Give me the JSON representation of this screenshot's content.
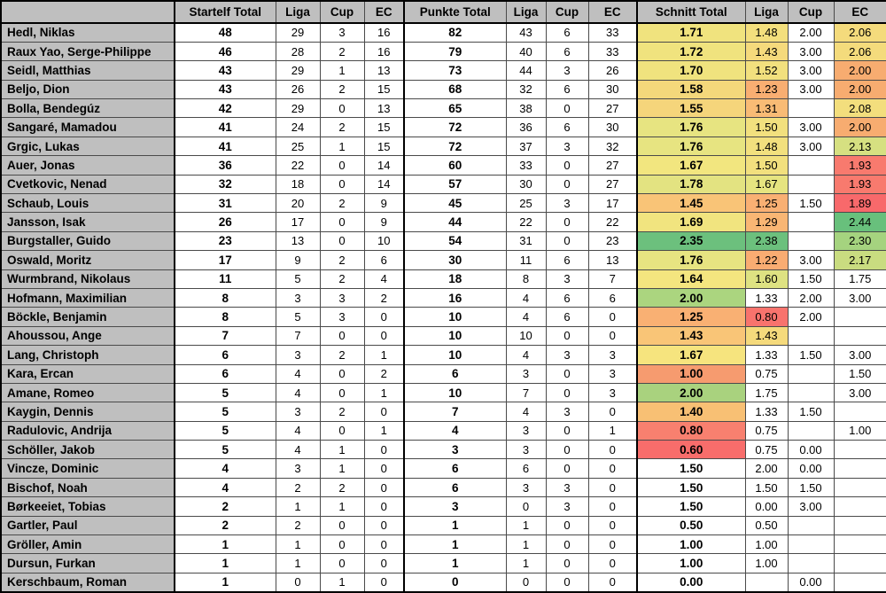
{
  "table": {
    "colors": {
      "header_fill": "#BFBFBF",
      "name_fill": "#BFBFBF",
      "scale_red": "#F8696B",
      "scale_yellow": "#FFEB84",
      "scale_green": "#63BE7B"
    },
    "columns": [
      {
        "key": "player",
        "label": ""
      },
      {
        "key": "startelf-total",
        "label": "Startelf Total"
      },
      {
        "key": "startelf-liga",
        "label": "Liga"
      },
      {
        "key": "startelf-cup",
        "label": "Cup"
      },
      {
        "key": "startelf-ec",
        "label": "EC"
      },
      {
        "key": "punkte-total",
        "label": "Punkte Total"
      },
      {
        "key": "punkte-liga",
        "label": "Liga"
      },
      {
        "key": "punkte-cup",
        "label": "Cup"
      },
      {
        "key": "punkte-ec",
        "label": "EC"
      },
      {
        "key": "schnitt-total",
        "label": "Schnitt Total"
      },
      {
        "key": "schnitt-liga",
        "label": "Liga"
      },
      {
        "key": "schnitt-cup",
        "label": "Cup"
      },
      {
        "key": "schnitt-ec",
        "label": "EC"
      }
    ],
    "rows": [
      {
        "name": "Hedl, Niklas",
        "values": [
          "48",
          "29",
          "3",
          "16",
          "82",
          "43",
          "6",
          "33",
          "1.71",
          "1.48",
          "2.00",
          "2.06"
        ],
        "fills": [
          "#F0E37E",
          "#F3DF7D",
          null,
          "#F4DB7C"
        ]
      },
      {
        "name": "Raux Yao, Serge-Philippe",
        "values": [
          "46",
          "28",
          "2",
          "16",
          "79",
          "40",
          "6",
          "33",
          "1.72",
          "1.43",
          "3.00",
          "2.06"
        ],
        "fills": [
          "#F0E37E",
          "#F5DA7C",
          null,
          "#F4DB7C"
        ]
      },
      {
        "name": "Seidl, Matthias",
        "values": [
          "43",
          "29",
          "1",
          "13",
          "73",
          "44",
          "3",
          "26",
          "1.70",
          "1.52",
          "3.00",
          "2.00"
        ],
        "fills": [
          "#F0E37E",
          "#F2E07E",
          null,
          "#F7AC70"
        ]
      },
      {
        "name": "Beljo, Dion",
        "values": [
          "43",
          "26",
          "2",
          "15",
          "68",
          "32",
          "6",
          "30",
          "1.58",
          "1.23",
          "3.00",
          "2.00"
        ],
        "fills": [
          "#F4D87B",
          "#F9AE72",
          null,
          "#F7AC70"
        ]
      },
      {
        "name": "Bolla, Bendegúz",
        "values": [
          "42",
          "29",
          "0",
          "13",
          "65",
          "38",
          "0",
          "27",
          "1.55",
          "1.31",
          "",
          "2.08"
        ],
        "fills": [
          "#F5D57B",
          "#F9BB75",
          null,
          "#F3DE7D"
        ]
      },
      {
        "name": "Sangaré, Mamadou",
        "values": [
          "41",
          "24",
          "2",
          "15",
          "72",
          "36",
          "6",
          "30",
          "1.76",
          "1.50",
          "3.00",
          "2.00"
        ],
        "fills": [
          "#E7E481",
          "#F2E07E",
          null,
          "#F7AC70"
        ]
      },
      {
        "name": "Grgic, Lukas",
        "values": [
          "41",
          "25",
          "1",
          "15",
          "72",
          "37",
          "3",
          "32",
          "1.76",
          "1.48",
          "3.00",
          "2.13"
        ],
        "fills": [
          "#E7E481",
          "#F2E07E",
          null,
          "#D6E081"
        ]
      },
      {
        "name": "Auer, Jonas",
        "values": [
          "36",
          "22",
          "0",
          "14",
          "60",
          "33",
          "0",
          "27",
          "1.67",
          "1.50",
          "",
          "1.93"
        ],
        "fills": [
          "#F2E67F",
          "#F2E07E",
          null,
          "#F87A6E"
        ]
      },
      {
        "name": "Cvetkovic, Nenad",
        "values": [
          "32",
          "18",
          "0",
          "14",
          "57",
          "30",
          "0",
          "27",
          "1.78",
          "1.67",
          "",
          "1.93"
        ],
        "fills": [
          "#E3E381",
          "#E6E480",
          null,
          "#F87A6E"
        ]
      },
      {
        "name": "Schaub, Louis",
        "values": [
          "31",
          "20",
          "2",
          "9",
          "45",
          "25",
          "3",
          "17",
          "1.45",
          "1.25",
          "1.50",
          "1.89"
        ],
        "fills": [
          "#F9C477",
          "#F9B073",
          null,
          "#F8696B"
        ]
      },
      {
        "name": "Jansson, Isak",
        "values": [
          "26",
          "17",
          "0",
          "9",
          "44",
          "22",
          "0",
          "22",
          "1.69",
          "1.29",
          "",
          "2.44"
        ],
        "fills": [
          "#F1E47F",
          "#F9B674",
          null,
          "#68C07C"
        ]
      },
      {
        "name": "Burgstaller, Guido",
        "values": [
          "23",
          "13",
          "0",
          "10",
          "54",
          "31",
          "0",
          "23",
          "2.35",
          "2.38",
          "",
          "2.30"
        ],
        "fills": [
          "#6CC07D",
          "#6CC07D",
          null,
          "#A5D37F"
        ]
      },
      {
        "name": "Oswald, Moritz",
        "values": [
          "17",
          "9",
          "2",
          "6",
          "30",
          "11",
          "6",
          "13",
          "1.76",
          "1.22",
          "3.00",
          "2.17"
        ],
        "fills": [
          "#E7E481",
          "#F9AC72",
          null,
          "#C9DC80"
        ]
      },
      {
        "name": "Wurmbrand, Nikolaus",
        "values": [
          "11",
          "5",
          "2",
          "4",
          "18",
          "8",
          "3",
          "7",
          "1.64",
          "1.60",
          "1.50",
          "1.75"
        ],
        "fills": [
          "#F4E57F",
          "#DEE282",
          null,
          null
        ]
      },
      {
        "name": "Hofmann, Maximilian",
        "values": [
          "8",
          "3",
          "3",
          "2",
          "16",
          "4",
          "6",
          "6",
          "2.00",
          "1.33",
          "2.00",
          "3.00"
        ],
        "fills": [
          "#ABD57F",
          null,
          null,
          null
        ]
      },
      {
        "name": "Böckle, Benjamin",
        "values": [
          "8",
          "5",
          "3",
          "0",
          "10",
          "4",
          "6",
          "0",
          "1.25",
          "0.80",
          "2.00",
          ""
        ],
        "fills": [
          "#F9B073",
          "#F8736D",
          null,
          null
        ]
      },
      {
        "name": "Ahoussou, Ange",
        "values": [
          "7",
          "7",
          "0",
          "0",
          "10",
          "10",
          "0",
          "0",
          "1.43",
          "1.43",
          "",
          ""
        ],
        "fills": [
          "#F9C577",
          "#F5DA7C",
          null,
          null
        ]
      },
      {
        "name": "Lang, Christoph",
        "values": [
          "6",
          "3",
          "2",
          "1",
          "10",
          "4",
          "3",
          "3",
          "1.67",
          "1.33",
          "1.50",
          "3.00"
        ],
        "fills": [
          "#F6E47E",
          null,
          null,
          null
        ]
      },
      {
        "name": "Kara, Ercan",
        "values": [
          "6",
          "4",
          "0",
          "2",
          "6",
          "3",
          "0",
          "3",
          "1.00",
          "0.75",
          "",
          "1.50"
        ],
        "fills": [
          "#F69B6F",
          null,
          null,
          null
        ]
      },
      {
        "name": "Amane, Romeo",
        "values": [
          "5",
          "4",
          "0",
          "1",
          "10",
          "7",
          "0",
          "3",
          "2.00",
          "1.75",
          "",
          "3.00"
        ],
        "fills": [
          "#A9D27E",
          null,
          null,
          null
        ]
      },
      {
        "name": "Kaygin, Dennis",
        "values": [
          "5",
          "3",
          "2",
          "0",
          "7",
          "4",
          "3",
          "0",
          "1.40",
          "1.33",
          "1.50",
          ""
        ],
        "fills": [
          "#F8C074",
          null,
          null,
          null
        ]
      },
      {
        "name": "Radulovic, Andrija",
        "values": [
          "5",
          "4",
          "0",
          "1",
          "4",
          "3",
          "0",
          "1",
          "0.80",
          "0.75",
          "",
          "1.00"
        ],
        "fills": [
          "#F8806F",
          null,
          null,
          null
        ]
      },
      {
        "name": "Schöller, Jakob",
        "values": [
          "5",
          "4",
          "1",
          "0",
          "3",
          "3",
          "0",
          "0",
          "0.60",
          "0.75",
          "0.00",
          ""
        ],
        "fills": [
          "#F86D6B",
          null,
          null,
          null
        ]
      },
      {
        "name": "Vincze, Dominic",
        "values": [
          "4",
          "3",
          "1",
          "0",
          "6",
          "6",
          "0",
          "0",
          "1.50",
          "2.00",
          "0.00",
          ""
        ],
        "fills": [
          null,
          null,
          null,
          null
        ]
      },
      {
        "name": "Bischof, Noah",
        "values": [
          "4",
          "2",
          "2",
          "0",
          "6",
          "3",
          "3",
          "0",
          "1.50",
          "1.50",
          "1.50",
          ""
        ],
        "fills": [
          null,
          null,
          null,
          null
        ]
      },
      {
        "name": "Børkeeiet, Tobias",
        "values": [
          "2",
          "1",
          "1",
          "0",
          "3",
          "0",
          "3",
          "0",
          "1.50",
          "0.00",
          "3.00",
          ""
        ],
        "fills": [
          null,
          null,
          null,
          null
        ]
      },
      {
        "name": "Gartler, Paul",
        "values": [
          "2",
          "2",
          "0",
          "0",
          "1",
          "1",
          "0",
          "0",
          "0.50",
          "0.50",
          "",
          ""
        ],
        "fills": [
          null,
          null,
          null,
          null
        ]
      },
      {
        "name": "Gröller, Amin",
        "values": [
          "1",
          "1",
          "0",
          "0",
          "1",
          "1",
          "0",
          "0",
          "1.00",
          "1.00",
          "",
          ""
        ],
        "fills": [
          null,
          null,
          null,
          null
        ]
      },
      {
        "name": "Dursun, Furkan",
        "values": [
          "1",
          "1",
          "0",
          "0",
          "1",
          "1",
          "0",
          "0",
          "1.00",
          "1.00",
          "",
          ""
        ],
        "fills": [
          null,
          null,
          null,
          null
        ]
      },
      {
        "name": "Kerschbaum, Roman",
        "values": [
          "1",
          "0",
          "1",
          "0",
          "0",
          "0",
          "0",
          "0",
          "0.00",
          "",
          "0.00",
          ""
        ],
        "fills": [
          null,
          null,
          null,
          null
        ]
      }
    ]
  }
}
